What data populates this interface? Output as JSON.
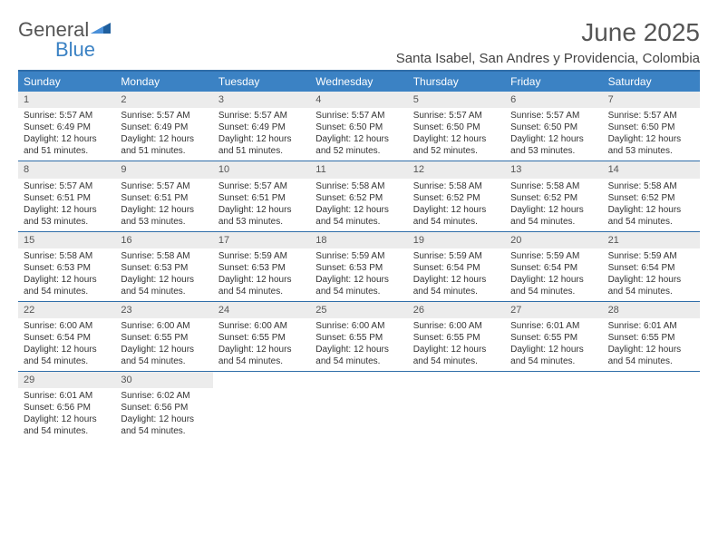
{
  "logo": {
    "general": "General",
    "blue": "Blue"
  },
  "title": "June 2025",
  "location": "Santa Isabel, San Andres y Providencia, Colombia",
  "colors": {
    "header_bg": "#3b82c4",
    "border": "#2f6da8",
    "daynum_bg": "#ececec",
    "text": "#333333"
  },
  "day_names": [
    "Sunday",
    "Monday",
    "Tuesday",
    "Wednesday",
    "Thursday",
    "Friday",
    "Saturday"
  ],
  "weeks": [
    [
      {
        "num": "1",
        "sunrise": "Sunrise: 5:57 AM",
        "sunset": "Sunset: 6:49 PM",
        "daylight": "Daylight: 12 hours and 51 minutes."
      },
      {
        "num": "2",
        "sunrise": "Sunrise: 5:57 AM",
        "sunset": "Sunset: 6:49 PM",
        "daylight": "Daylight: 12 hours and 51 minutes."
      },
      {
        "num": "3",
        "sunrise": "Sunrise: 5:57 AM",
        "sunset": "Sunset: 6:49 PM",
        "daylight": "Daylight: 12 hours and 51 minutes."
      },
      {
        "num": "4",
        "sunrise": "Sunrise: 5:57 AM",
        "sunset": "Sunset: 6:50 PM",
        "daylight": "Daylight: 12 hours and 52 minutes."
      },
      {
        "num": "5",
        "sunrise": "Sunrise: 5:57 AM",
        "sunset": "Sunset: 6:50 PM",
        "daylight": "Daylight: 12 hours and 52 minutes."
      },
      {
        "num": "6",
        "sunrise": "Sunrise: 5:57 AM",
        "sunset": "Sunset: 6:50 PM",
        "daylight": "Daylight: 12 hours and 53 minutes."
      },
      {
        "num": "7",
        "sunrise": "Sunrise: 5:57 AM",
        "sunset": "Sunset: 6:50 PM",
        "daylight": "Daylight: 12 hours and 53 minutes."
      }
    ],
    [
      {
        "num": "8",
        "sunrise": "Sunrise: 5:57 AM",
        "sunset": "Sunset: 6:51 PM",
        "daylight": "Daylight: 12 hours and 53 minutes."
      },
      {
        "num": "9",
        "sunrise": "Sunrise: 5:57 AM",
        "sunset": "Sunset: 6:51 PM",
        "daylight": "Daylight: 12 hours and 53 minutes."
      },
      {
        "num": "10",
        "sunrise": "Sunrise: 5:57 AM",
        "sunset": "Sunset: 6:51 PM",
        "daylight": "Daylight: 12 hours and 53 minutes."
      },
      {
        "num": "11",
        "sunrise": "Sunrise: 5:58 AM",
        "sunset": "Sunset: 6:52 PM",
        "daylight": "Daylight: 12 hours and 54 minutes."
      },
      {
        "num": "12",
        "sunrise": "Sunrise: 5:58 AM",
        "sunset": "Sunset: 6:52 PM",
        "daylight": "Daylight: 12 hours and 54 minutes."
      },
      {
        "num": "13",
        "sunrise": "Sunrise: 5:58 AM",
        "sunset": "Sunset: 6:52 PM",
        "daylight": "Daylight: 12 hours and 54 minutes."
      },
      {
        "num": "14",
        "sunrise": "Sunrise: 5:58 AM",
        "sunset": "Sunset: 6:52 PM",
        "daylight": "Daylight: 12 hours and 54 minutes."
      }
    ],
    [
      {
        "num": "15",
        "sunrise": "Sunrise: 5:58 AM",
        "sunset": "Sunset: 6:53 PM",
        "daylight": "Daylight: 12 hours and 54 minutes."
      },
      {
        "num": "16",
        "sunrise": "Sunrise: 5:58 AM",
        "sunset": "Sunset: 6:53 PM",
        "daylight": "Daylight: 12 hours and 54 minutes."
      },
      {
        "num": "17",
        "sunrise": "Sunrise: 5:59 AM",
        "sunset": "Sunset: 6:53 PM",
        "daylight": "Daylight: 12 hours and 54 minutes."
      },
      {
        "num": "18",
        "sunrise": "Sunrise: 5:59 AM",
        "sunset": "Sunset: 6:53 PM",
        "daylight": "Daylight: 12 hours and 54 minutes."
      },
      {
        "num": "19",
        "sunrise": "Sunrise: 5:59 AM",
        "sunset": "Sunset: 6:54 PM",
        "daylight": "Daylight: 12 hours and 54 minutes."
      },
      {
        "num": "20",
        "sunrise": "Sunrise: 5:59 AM",
        "sunset": "Sunset: 6:54 PM",
        "daylight": "Daylight: 12 hours and 54 minutes."
      },
      {
        "num": "21",
        "sunrise": "Sunrise: 5:59 AM",
        "sunset": "Sunset: 6:54 PM",
        "daylight": "Daylight: 12 hours and 54 minutes."
      }
    ],
    [
      {
        "num": "22",
        "sunrise": "Sunrise: 6:00 AM",
        "sunset": "Sunset: 6:54 PM",
        "daylight": "Daylight: 12 hours and 54 minutes."
      },
      {
        "num": "23",
        "sunrise": "Sunrise: 6:00 AM",
        "sunset": "Sunset: 6:55 PM",
        "daylight": "Daylight: 12 hours and 54 minutes."
      },
      {
        "num": "24",
        "sunrise": "Sunrise: 6:00 AM",
        "sunset": "Sunset: 6:55 PM",
        "daylight": "Daylight: 12 hours and 54 minutes."
      },
      {
        "num": "25",
        "sunrise": "Sunrise: 6:00 AM",
        "sunset": "Sunset: 6:55 PM",
        "daylight": "Daylight: 12 hours and 54 minutes."
      },
      {
        "num": "26",
        "sunrise": "Sunrise: 6:00 AM",
        "sunset": "Sunset: 6:55 PM",
        "daylight": "Daylight: 12 hours and 54 minutes."
      },
      {
        "num": "27",
        "sunrise": "Sunrise: 6:01 AM",
        "sunset": "Sunset: 6:55 PM",
        "daylight": "Daylight: 12 hours and 54 minutes."
      },
      {
        "num": "28",
        "sunrise": "Sunrise: 6:01 AM",
        "sunset": "Sunset: 6:55 PM",
        "daylight": "Daylight: 12 hours and 54 minutes."
      }
    ],
    [
      {
        "num": "29",
        "sunrise": "Sunrise: 6:01 AM",
        "sunset": "Sunset: 6:56 PM",
        "daylight": "Daylight: 12 hours and 54 minutes."
      },
      {
        "num": "30",
        "sunrise": "Sunrise: 6:02 AM",
        "sunset": "Sunset: 6:56 PM",
        "daylight": "Daylight: 12 hours and 54 minutes."
      },
      null,
      null,
      null,
      null,
      null
    ]
  ]
}
